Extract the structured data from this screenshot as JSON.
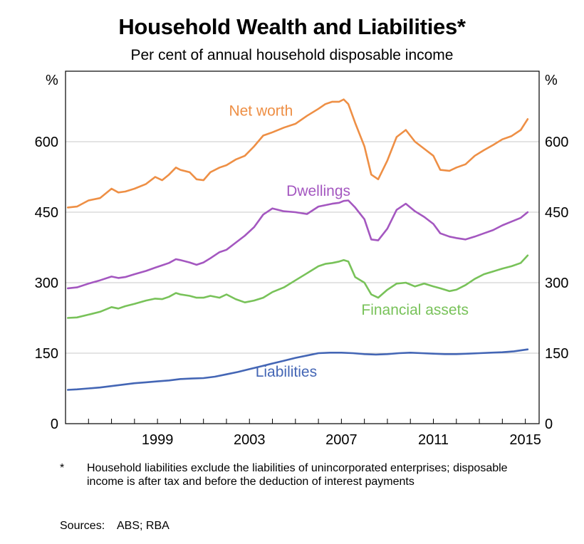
{
  "header": {
    "title": "Household Wealth and Liabilities*",
    "subtitle": "Per cent of annual household disposable income"
  },
  "footer": {
    "footnote_mark": "*",
    "footnote_text": "Household liabilities exclude the liabilities of unincorporated enterprises; disposable income is after tax and before the deduction of interest payments",
    "sources_label": "Sources:",
    "sources_text": "ABS; RBA"
  },
  "chart_data": {
    "type": "line",
    "title": "Household Wealth and Liabilities*",
    "subtitle": "Per cent of annual household disposable income",
    "y_unit_left": "%",
    "y_unit_right": "%",
    "xlim": [
      1995.0,
      2015.6
    ],
    "ylim": [
      0,
      750
    ],
    "x_ticks": [
      1999,
      2003,
      2007,
      2011,
      2015
    ],
    "y_ticks": [
      0,
      150,
      300,
      450,
      600
    ],
    "grid": "horizontal",
    "legend": "inline labels",
    "series": [
      {
        "name": "Net worth",
        "color": "#ee8f45",
        "x": [
          1995.1,
          1995.5,
          1996.0,
          1996.5,
          1997.0,
          1997.3,
          1997.6,
          1998.0,
          1998.5,
          1998.9,
          1999.2,
          1999.5,
          1999.8,
          2000.0,
          2000.4,
          2000.7,
          2001.0,
          2001.3,
          2001.7,
          2002.0,
          2002.4,
          2002.8,
          2003.2,
          2003.6,
          2004.0,
          2004.5,
          2005.0,
          2005.5,
          2006.0,
          2006.3,
          2006.6,
          2006.9,
          2007.1,
          2007.3,
          2007.6,
          2008.0,
          2008.3,
          2008.6,
          2009.0,
          2009.4,
          2009.8,
          2010.2,
          2010.6,
          2011.0,
          2011.3,
          2011.7,
          2012.0,
          2012.4,
          2012.8,
          2013.2,
          2013.6,
          2014.0,
          2014.4,
          2014.8,
          2015.1
        ],
        "values": [
          460,
          462,
          475,
          480,
          500,
          492,
          494,
          500,
          510,
          525,
          518,
          530,
          545,
          540,
          535,
          520,
          518,
          535,
          545,
          550,
          562,
          570,
          590,
          613,
          620,
          630,
          638,
          655,
          670,
          680,
          685,
          685,
          690,
          680,
          640,
          590,
          530,
          520,
          560,
          610,
          625,
          600,
          585,
          570,
          540,
          538,
          545,
          552,
          570,
          582,
          593,
          605,
          612,
          625,
          648
        ]
      },
      {
        "name": "Dwellings",
        "color": "#a457c0",
        "x": [
          1995.1,
          1995.5,
          1996.0,
          1996.5,
          1997.0,
          1997.3,
          1997.6,
          1998.0,
          1998.5,
          1998.9,
          1999.2,
          1999.5,
          1999.8,
          2000.0,
          2000.4,
          2000.7,
          2001.0,
          2001.3,
          2001.7,
          2002.0,
          2002.4,
          2002.8,
          2003.2,
          2003.6,
          2004.0,
          2004.5,
          2005.0,
          2005.5,
          2006.0,
          2006.3,
          2006.6,
          2006.9,
          2007.1,
          2007.3,
          2007.6,
          2008.0,
          2008.3,
          2008.6,
          2009.0,
          2009.4,
          2009.8,
          2010.2,
          2010.6,
          2011.0,
          2011.3,
          2011.7,
          2012.0,
          2012.4,
          2012.8,
          2013.2,
          2013.6,
          2014.0,
          2014.4,
          2014.8,
          2015.1
        ],
        "values": [
          288,
          290,
          298,
          305,
          313,
          310,
          312,
          318,
          325,
          332,
          337,
          342,
          350,
          348,
          343,
          338,
          343,
          352,
          365,
          370,
          385,
          400,
          418,
          445,
          458,
          452,
          450,
          446,
          462,
          465,
          468,
          470,
          474,
          475,
          460,
          435,
          392,
          390,
          415,
          455,
          468,
          452,
          440,
          425,
          405,
          398,
          395,
          392,
          398,
          405,
          412,
          422,
          430,
          438,
          450
        ]
      },
      {
        "name": "Financial assets",
        "color": "#78c259",
        "x": [
          1995.1,
          1995.5,
          1996.0,
          1996.5,
          1997.0,
          1997.3,
          1997.6,
          1998.0,
          1998.5,
          1998.9,
          1999.2,
          1999.5,
          1999.8,
          2000.0,
          2000.4,
          2000.7,
          2001.0,
          2001.3,
          2001.7,
          2002.0,
          2002.4,
          2002.8,
          2003.2,
          2003.6,
          2004.0,
          2004.5,
          2005.0,
          2005.5,
          2006.0,
          2006.3,
          2006.6,
          2006.9,
          2007.1,
          2007.3,
          2007.6,
          2008.0,
          2008.3,
          2008.6,
          2009.0,
          2009.4,
          2009.8,
          2010.2,
          2010.6,
          2011.0,
          2011.3,
          2011.7,
          2012.0,
          2012.4,
          2012.8,
          2013.2,
          2013.6,
          2014.0,
          2014.4,
          2014.8,
          2015.1
        ],
        "values": [
          225,
          226,
          232,
          238,
          248,
          245,
          250,
          255,
          262,
          266,
          265,
          270,
          278,
          275,
          272,
          268,
          268,
          272,
          268,
          275,
          265,
          258,
          262,
          268,
          280,
          290,
          305,
          320,
          335,
          340,
          342,
          345,
          348,
          345,
          312,
          300,
          275,
          268,
          285,
          298,
          300,
          292,
          298,
          292,
          288,
          282,
          285,
          295,
          308,
          318,
          324,
          330,
          335,
          342,
          358
        ]
      },
      {
        "name": "Liabilities",
        "color": "#4466b5",
        "x": [
          1995.1,
          1995.5,
          1996.0,
          1996.5,
          1997.0,
          1997.5,
          1998.0,
          1998.5,
          1999.0,
          1999.5,
          2000.0,
          2000.5,
          2001.0,
          2001.5,
          2002.0,
          2002.5,
          2003.0,
          2003.5,
          2004.0,
          2004.5,
          2005.0,
          2005.5,
          2006.0,
          2006.5,
          2007.0,
          2007.5,
          2008.0,
          2008.5,
          2009.0,
          2009.5,
          2010.0,
          2010.5,
          2011.0,
          2011.5,
          2012.0,
          2012.5,
          2013.0,
          2013.5,
          2014.0,
          2014.5,
          2015.1
        ],
        "values": [
          72,
          73,
          75,
          77,
          80,
          83,
          86,
          88,
          90,
          92,
          95,
          96,
          97,
          100,
          105,
          110,
          116,
          122,
          128,
          134,
          140,
          145,
          150,
          151,
          151,
          150,
          148,
          147,
          148,
          150,
          151,
          150,
          149,
          148,
          148,
          149,
          150,
          151,
          152,
          154,
          158
        ]
      }
    ],
    "annotations": [
      {
        "text": "Net worth",
        "series": "Net worth",
        "x": 2003.5,
        "y": 655
      },
      {
        "text": "Dwellings",
        "series": "Dwellings",
        "x": 2006.0,
        "y": 485
      },
      {
        "text": "Financial assets",
        "series": "Financial assets",
        "x": 2010.2,
        "y": 232
      },
      {
        "text": "Liabilities",
        "series": "Liabilities",
        "x": 2004.6,
        "y": 100
      }
    ]
  }
}
